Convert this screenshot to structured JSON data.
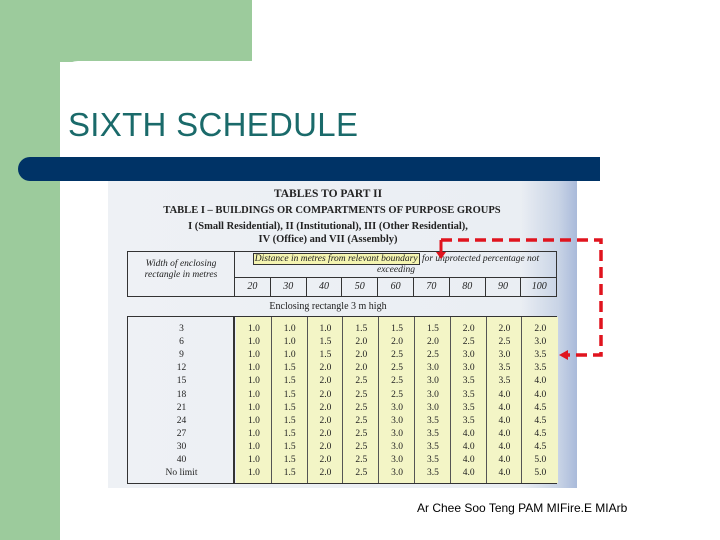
{
  "slide": {
    "title": "SIXTH SCHEDULE",
    "footer": "Ar Chee Soo Teng PAM MIFire.E MIArb"
  },
  "colors": {
    "green": "#9ccb9c",
    "bar": "#003366",
    "title": "#1a6a6a",
    "annotation": "#e0141e",
    "highlight": "#f4f4b0"
  },
  "table": {
    "heading": "TABLES TO PART II",
    "title": "TABLE I – BUILDINGS OR COMPARTMENTS OF PURPOSE GROUPS",
    "subtitle_1": "I (Small Residential), II (Institutional), III (Other Residential),",
    "subtitle_2": "IV (Office) and VII (Assembly)",
    "width_header": "Width of enclosing rectangle in metres",
    "distance_header_highlight": "Distance in metres from relevant boundary",
    "distance_header_rest": " for unprotected percentage not exceeding",
    "percentages": [
      "20",
      "30",
      "40",
      "50",
      "60",
      "70",
      "80",
      "90",
      "100"
    ],
    "section": "Enclosing rectangle 3 m high",
    "rows": [
      {
        "width": "3",
        "values": [
          "1.0",
          "1.0",
          "1.0",
          "1.5",
          "1.5",
          "1.5",
          "2.0",
          "2.0",
          "2.0"
        ]
      },
      {
        "width": "6",
        "values": [
          "1.0",
          "1.0",
          "1.5",
          "2.0",
          "2.0",
          "2.0",
          "2.5",
          "2.5",
          "3.0"
        ]
      },
      {
        "width": "9",
        "values": [
          "1.0",
          "1.0",
          "1.5",
          "2.0",
          "2.5",
          "2.5",
          "3.0",
          "3.0",
          "3.5"
        ]
      },
      {
        "width": "12",
        "values": [
          "1.0",
          "1.5",
          "2.0",
          "2.0",
          "2.5",
          "3.0",
          "3.0",
          "3.5",
          "3.5"
        ]
      },
      {
        "width": "15",
        "values": [
          "1.0",
          "1.5",
          "2.0",
          "2.5",
          "2.5",
          "3.0",
          "3.5",
          "3.5",
          "4.0"
        ]
      },
      {
        "width": "18",
        "values": [
          "1.0",
          "1.5",
          "2.0",
          "2.5",
          "2.5",
          "3.0",
          "3.5",
          "4.0",
          "4.0"
        ]
      },
      {
        "width": "21",
        "values": [
          "1.0",
          "1.5",
          "2.0",
          "2.5",
          "3.0",
          "3.0",
          "3.5",
          "4.0",
          "4.5"
        ]
      },
      {
        "width": "24",
        "values": [
          "1.0",
          "1.5",
          "2.0",
          "2.5",
          "3.0",
          "3.5",
          "3.5",
          "4.0",
          "4.5"
        ]
      },
      {
        "width": "27",
        "values": [
          "1.0",
          "1.5",
          "2.0",
          "2.5",
          "3.0",
          "3.5",
          "4.0",
          "4.0",
          "4.5"
        ]
      },
      {
        "width": "30",
        "values": [
          "1.0",
          "1.5",
          "2.0",
          "2.5",
          "3.0",
          "3.5",
          "4.0",
          "4.0",
          "4.5"
        ]
      },
      {
        "width": "40",
        "values": [
          "1.0",
          "1.5",
          "2.0",
          "2.5",
          "3.0",
          "3.5",
          "4.0",
          "4.0",
          "5.0"
        ]
      },
      {
        "width": "No limit",
        "values": [
          "1.0",
          "1.5",
          "2.0",
          "2.5",
          "3.0",
          "3.5",
          "4.0",
          "4.0",
          "5.0"
        ]
      }
    ]
  }
}
